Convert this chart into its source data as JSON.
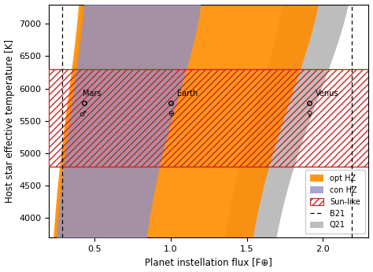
{
  "xlim": [
    0.2,
    2.3
  ],
  "ylim": [
    3700,
    7300
  ],
  "xlabel": "Planet instellation flux [F⊕]",
  "ylabel": "Host star effective temperature [K]",
  "xticks": [
    0.5,
    1.0,
    1.5,
    2.0
  ],
  "yticks": [
    4000,
    4500,
    5000,
    5500,
    6000,
    6500,
    7000
  ],
  "sun_like_teff_range": [
    4800,
    6300
  ],
  "b21_flux_range": [
    0.29,
    2.19
  ],
  "opt_hz_color": "#FF8C00",
  "con_hz_color": "#9090C8",
  "sun_like_color": "#CC2222",
  "q21_color": "#888888",
  "mars_flux": 0.431,
  "mars_teff": 5778,
  "earth_flux": 1.0,
  "earth_teff": 5778,
  "venus_flux": 1.911,
  "venus_teff": 5778,
  "figsize": [
    4.74,
    3.46
  ],
  "dpi": 100,
  "hz_params": {
    "recent_venus": {
      "seff_sun": 1.7763,
      "a": 0.00014335,
      "b": 3.3954e-09,
      "c": -7.6364e-12,
      "d": -1.195e-15
    },
    "runaway_greenhouse": {
      "seff_sun": 1.0385,
      "a": 0.00012456,
      "b": 4.8738e-09,
      "c": -8.898e-12,
      "d": -2.0711e-15
    },
    "maximum_greenhouse": {
      "seff_sun": 0.3507,
      "a": 5.9578e-05,
      "b": 1.6707e-09,
      "c": -3.0058e-12,
      "d": -5.1925e-16
    },
    "early_mars": {
      "seff_sun": 0.3207,
      "a": 5.4839e-05,
      "b": 1.5399e-09,
      "c": -2.7783e-12,
      "d": -4.8997e-16
    }
  }
}
